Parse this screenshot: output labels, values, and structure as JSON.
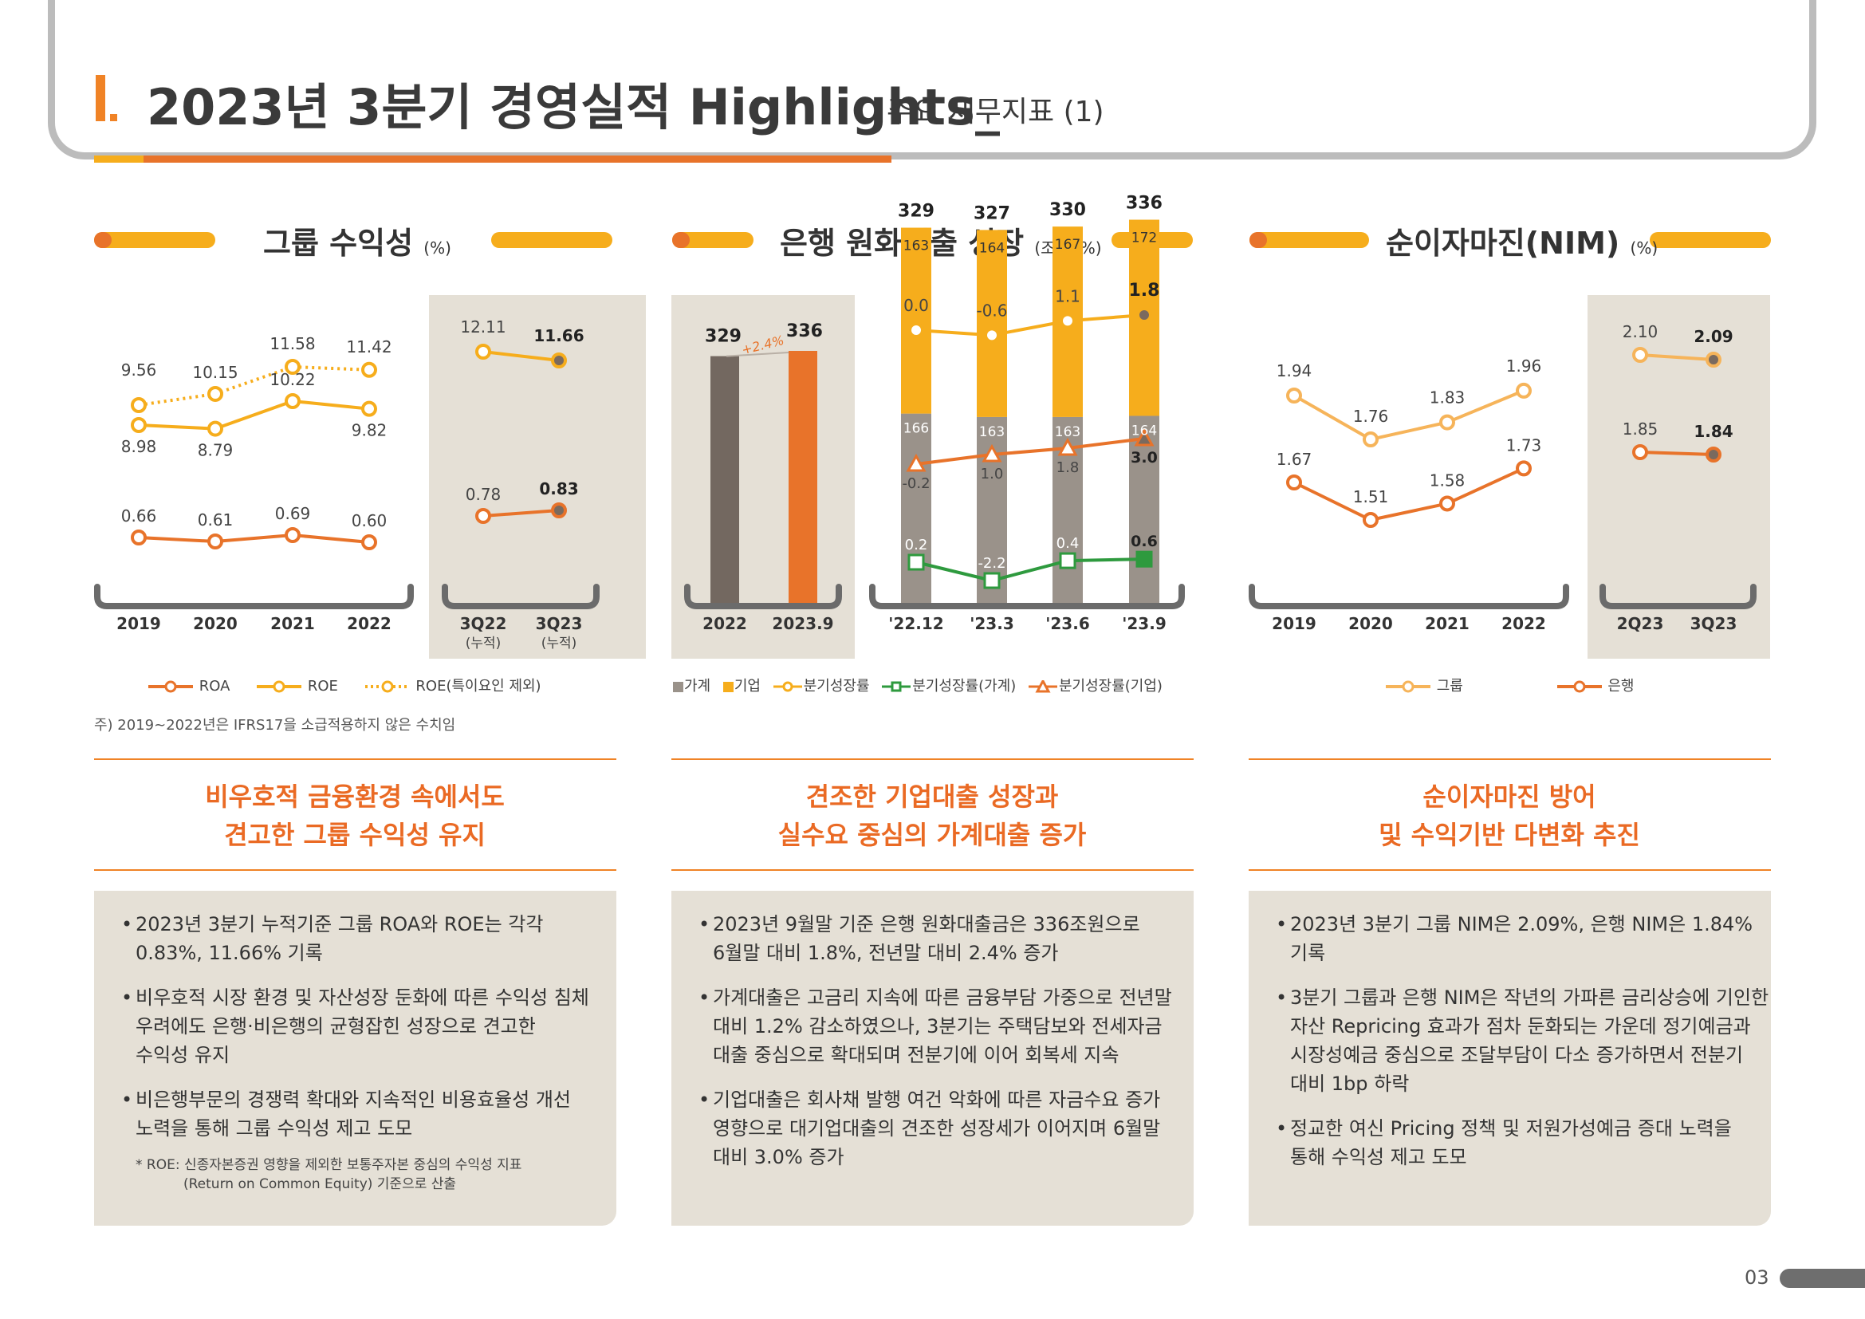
{
  "header": {
    "roman": "I.",
    "title": "2023년 3분기 경영실적 Highlights_",
    "subtitle": "주요 재무지표 (1)"
  },
  "sections": [
    {
      "title": "그룹 수익성",
      "unit": "(%)",
      "legend": [
        "ROA",
        "ROE",
        "ROE(특이요인 제외)"
      ],
      "note": "주) 2019~2022년은 IFRS17을 소급적용하지 않은 수치임",
      "headline": [
        "비우호적 금융환경 속에서도",
        "견고한 그룹 수익성 유지"
      ],
      "bullets": [
        [
          "2023년 3분기 누적기준 그룹 ROA와 ROE는 각각",
          "0.83%, 11.66% 기록"
        ],
        [
          "비우호적 시장 환경 및 자산성장 둔화에 따른 수익성 침체",
          "우려에도 은행·비은행의 균형잡힌 성장으로 견고한",
          "수익성 유지"
        ],
        [
          "비은행부문의 경쟁력 확대와 지속적인 비용효율성 개선",
          "노력을 통해 그룹 수익성 제고 도모"
        ]
      ],
      "footnote": [
        "* ROE: 신종자본증권 영향을 제외한 보통주자본 중심의 수익성 지표",
        "(Return on Common Equity) 기준으로 산출"
      ]
    },
    {
      "title": "은행 원화대출 성장",
      "unit": "(조원, %)",
      "legend": [
        "가계",
        "기업",
        "분기성장률",
        "분기성장률(가계)",
        "분기성장률(기업)"
      ],
      "headline": [
        "견조한 기업대출 성장과",
        "실수요 중심의 가계대출 증가"
      ],
      "bullets": [
        [
          "2023년 9월말 기준 은행 원화대출금은 336조원으로",
          "6월말 대비 1.8%, 전년말 대비 2.4% 증가"
        ],
        [
          "가계대출은 고금리 지속에 따른 금융부담 가중으로 전년말",
          "대비 1.2% 감소하였으나, 3분기는 주택담보와 전세자금",
          "대출 중심으로 확대되며 전분기에 이어 회복세 지속"
        ],
        [
          "기업대출은 회사채 발행 여건 악화에 따른 자금수요 증가",
          "영향으로 대기업대출의 견조한 성장세가 이어지며 6월말",
          "대비 3.0% 증가"
        ]
      ]
    },
    {
      "title": "순이자마진(NIM)",
      "unit": "(%)",
      "legend": [
        "그룹",
        "은행"
      ],
      "headline": [
        "순이자마진 방어",
        "및 수익기반 다변화 추진"
      ],
      "bullets": [
        [
          "2023년 3분기 그룹 NIM은 2.09%, 은행 NIM은 1.84%",
          "기록"
        ],
        [
          "3분기 그룹과 은행 NIM은 작년의 가파른 금리상승에 기인한",
          "자산 Repricing 효과가 점차 둔화되는 가운데 정기예금과",
          "시장성예금 중심으로 조달부담이 다소 증가하면서 전분기",
          "대비 1bp 하락"
        ],
        [
          "정교한 여신 Pricing 정책 및 저원가성예금 증대 노력을",
          "통해 수익성 제고 도모"
        ]
      ]
    }
  ],
  "colors": {
    "orange": "#e8732a",
    "yellow": "#f6ad1c",
    "light_orange": "#f6b45a",
    "gray_bar": "#9a928a",
    "dark_bar": "#736860",
    "green": "#2e9a3e",
    "panel": "#e5e0d6"
  },
  "chart_data": [
    {
      "type": "line",
      "title": "그룹 수익성",
      "x": [
        "2019",
        "2020",
        "2021",
        "2022"
      ],
      "series": [
        {
          "name": "ROE(특이요인 제외)",
          "values": [
            9.56,
            10.15,
            11.58,
            11.42
          ]
        },
        {
          "name": "ROE",
          "values": [
            8.98,
            8.79,
            10.22,
            9.82
          ]
        },
        {
          "name": "ROA",
          "values": [
            0.66,
            0.61,
            0.69,
            0.6
          ]
        }
      ]
    },
    {
      "type": "line",
      "title": "그룹 수익성 누적",
      "x": [
        "3Q22\n(누적)",
        "3Q23\n(누적)"
      ],
      "series": [
        {
          "name": "ROE",
          "values": [
            12.11,
            11.66
          ]
        },
        {
          "name": "ROA",
          "values": [
            0.78,
            0.83
          ]
        }
      ]
    },
    {
      "type": "bar",
      "title": "은행 원화대출",
      "categories": [
        "2022",
        "2023.9"
      ],
      "values": [
        329,
        336
      ],
      "annotation": "+2.4%"
    },
    {
      "type": "bar",
      "title": "은행 원화대출 분기",
      "categories": [
        "'22.12",
        "'23.3",
        "'23.6",
        "'23.9"
      ],
      "totals": [
        329,
        327,
        330,
        336
      ],
      "series": [
        {
          "name": "가계",
          "values": [
            166,
            163,
            163,
            164
          ]
        },
        {
          "name": "기업",
          "values": [
            163,
            164,
            167,
            172
          ]
        },
        {
          "name": "분기성장률",
          "values": [
            0.0,
            -0.6,
            1.1,
            1.8
          ]
        },
        {
          "name": "분기성장률(가계)",
          "values": [
            0.2,
            -2.2,
            0.4,
            0.6
          ]
        },
        {
          "name": "분기성장률(기업)",
          "values": [
            -0.2,
            1.0,
            1.8,
            3.0
          ]
        }
      ]
    },
    {
      "type": "line",
      "title": "순이자마진(NIM)",
      "x": [
        "2019",
        "2020",
        "2021",
        "2022"
      ],
      "series": [
        {
          "name": "그룹",
          "values": [
            1.94,
            1.76,
            1.83,
            1.96
          ]
        },
        {
          "name": "은행",
          "values": [
            1.67,
            1.51,
            1.58,
            1.73
          ]
        }
      ]
    },
    {
      "type": "line",
      "title": "순이자마진 분기",
      "x": [
        "2Q23",
        "3Q23"
      ],
      "series": [
        {
          "name": "그룹",
          "values": [
            2.1,
            2.09
          ]
        },
        {
          "name": "은행",
          "values": [
            1.85,
            1.84
          ]
        }
      ]
    }
  ],
  "page_number": "03"
}
